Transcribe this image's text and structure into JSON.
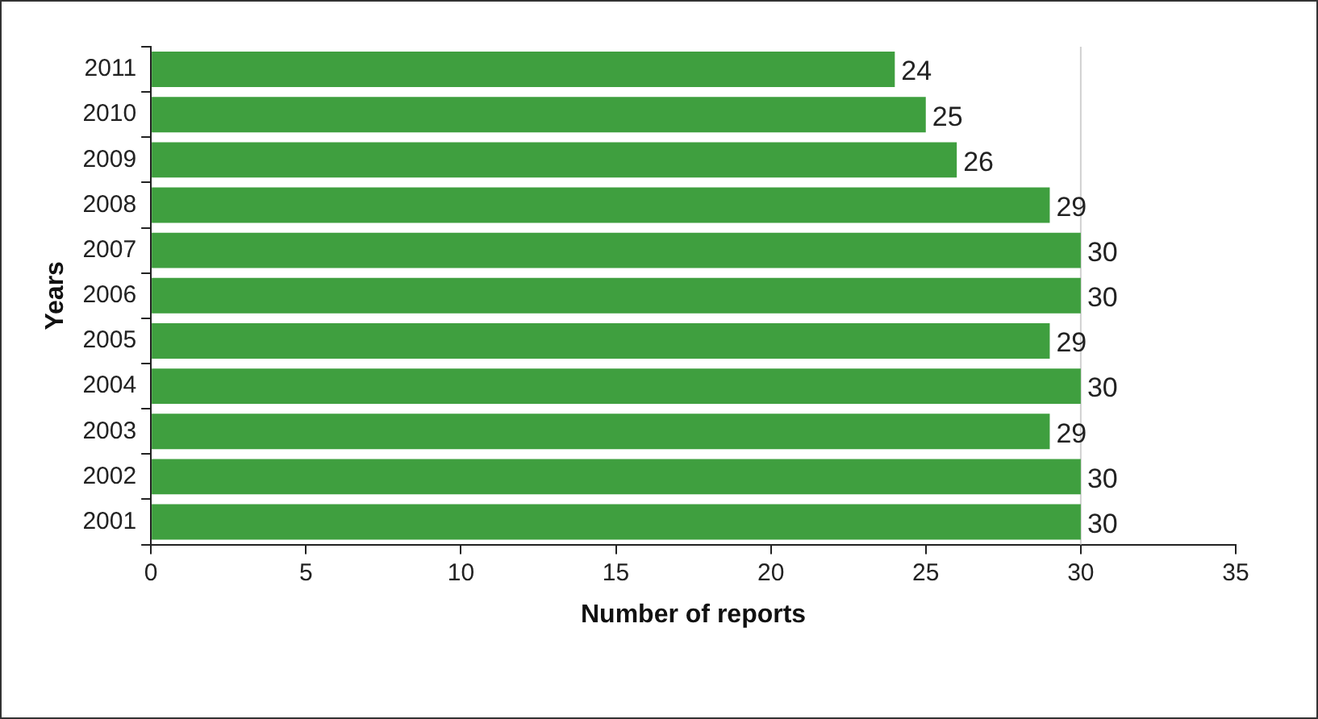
{
  "chart_data": {
    "type": "bar",
    "orientation": "horizontal",
    "xlabel": "Number of reports",
    "ylabel": "Years",
    "categories": [
      "2011",
      "2010",
      "2009",
      "2008",
      "2007",
      "2006",
      "2005",
      "2004",
      "2003",
      "2002",
      "2001"
    ],
    "values": [
      24,
      25,
      26,
      29,
      30,
      30,
      29,
      30,
      29,
      30,
      30
    ],
    "color": "#3f9f3f",
    "xlim": [
      0,
      35
    ],
    "xticks": [
      0,
      5,
      10,
      15,
      20,
      25,
      30,
      35
    ],
    "ref_lines": [
      {
        "axis": "x",
        "value": 30,
        "color": "#d0d0d0"
      }
    ],
    "data_labels": true,
    "grid": false,
    "legend": false
  }
}
